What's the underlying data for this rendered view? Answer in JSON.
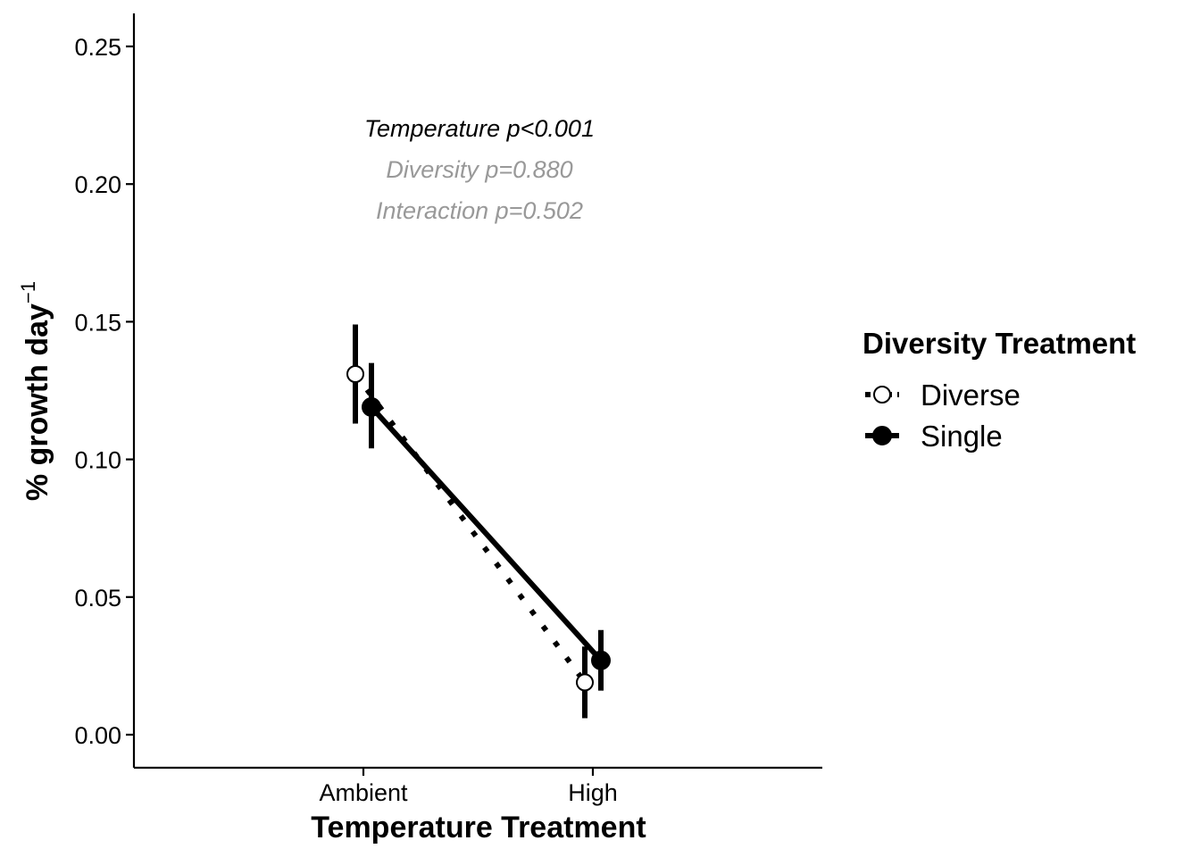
{
  "chart_data": {
    "type": "line",
    "xlabel": "Temperature Treatment",
    "ylabel": "% growth day",
    "ylabel_superscript": "−1",
    "categories": [
      "Ambient",
      "High"
    ],
    "ylim": [
      -0.012,
      0.262
    ],
    "yticks": [
      "0.00",
      "0.05",
      "0.10",
      "0.15",
      "0.20",
      "0.25"
    ],
    "grid": false,
    "legend": {
      "title": "Diversity Treatment",
      "position": "right"
    },
    "series": [
      {
        "name": "Diverse",
        "values": [
          0.131,
          0.019
        ],
        "lower": [
          0.113,
          0.006
        ],
        "upper": [
          0.149,
          0.032
        ],
        "line": "dotted",
        "marker": "open-circle",
        "color": "#000000"
      },
      {
        "name": "Single",
        "values": [
          0.119,
          0.027
        ],
        "lower": [
          0.104,
          0.016
        ],
        "upper": [
          0.135,
          0.038
        ],
        "line": "solid",
        "marker": "filled-circle",
        "color": "#000000"
      }
    ],
    "annotations": [
      {
        "text": "Temperature p<0.001",
        "color": "#000000"
      },
      {
        "text": "Diversity p=0.880",
        "color": "#999999"
      },
      {
        "text": "Interaction p=0.502",
        "color": "#999999"
      }
    ]
  }
}
